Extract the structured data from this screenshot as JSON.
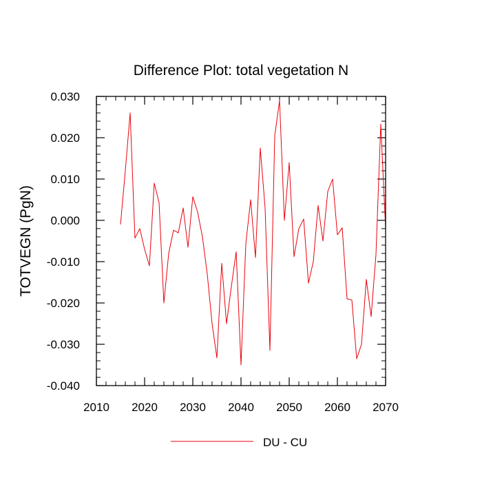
{
  "chart_data": {
    "type": "line",
    "title": "Difference Plot: total vegetation N",
    "xlabel": "",
    "ylabel": "TOTVEGN  (PgN)",
    "xlim": [
      2010,
      2070
    ],
    "ylim": [
      -0.04,
      0.03
    ],
    "xticks": [
      2010,
      2020,
      2030,
      2040,
      2050,
      2060,
      2070
    ],
    "yticks": [
      -0.04,
      -0.03,
      -0.02,
      -0.01,
      0.0,
      0.01,
      0.02,
      0.03
    ],
    "xtick_labels": [
      "2010",
      "2020",
      "2030",
      "2040",
      "2050",
      "2060",
      "2070"
    ],
    "ytick_labels": [
      "-0.040",
      "-0.030",
      "-0.020",
      "-0.010",
      "0.000",
      "0.010",
      "0.020",
      "0.030"
    ],
    "grid": false,
    "legend_position": "bottom-center",
    "series": [
      {
        "name": "DU - CU",
        "color": "#e8000b",
        "x": [
          2015,
          2016,
          2017,
          2018,
          2019,
          2020,
          2021,
          2022,
          2023,
          2024,
          2025,
          2026,
          2027,
          2028,
          2029,
          2030,
          2031,
          2032,
          2033,
          2034,
          2035,
          2036,
          2037,
          2038,
          2039,
          2040,
          2041,
          2042,
          2043,
          2044,
          2045,
          2046,
          2047,
          2048,
          2049,
          2050,
          2051,
          2052,
          2053,
          2054,
          2055,
          2056,
          2057,
          2058,
          2059,
          2060,
          2061,
          2062,
          2063,
          2064,
          2065,
          2066,
          2067,
          2068,
          2069,
          2070
        ],
        "y": [
          -0.001,
          0.012,
          0.026,
          -0.0043,
          -0.002,
          -0.007,
          -0.011,
          0.009,
          0.0043,
          -0.02,
          -0.008,
          -0.0024,
          -0.003,
          0.003,
          -0.0065,
          0.0057,
          0.002,
          -0.004,
          -0.013,
          -0.025,
          -0.0333,
          -0.0104,
          -0.025,
          -0.016,
          -0.0076,
          -0.035,
          -0.0057,
          0.005,
          -0.009,
          0.0175,
          0.003,
          -0.0315,
          0.0205,
          0.029,
          0.0,
          0.014,
          -0.0088,
          -0.002,
          0.0003,
          -0.0152,
          -0.01,
          0.0036,
          -0.005,
          0.007,
          0.01,
          -0.0035,
          -0.0018,
          -0.019,
          -0.0193,
          -0.0335,
          -0.03,
          -0.0143,
          -0.0233,
          -0.0083,
          0.0233,
          -0.002
        ]
      }
    ]
  }
}
